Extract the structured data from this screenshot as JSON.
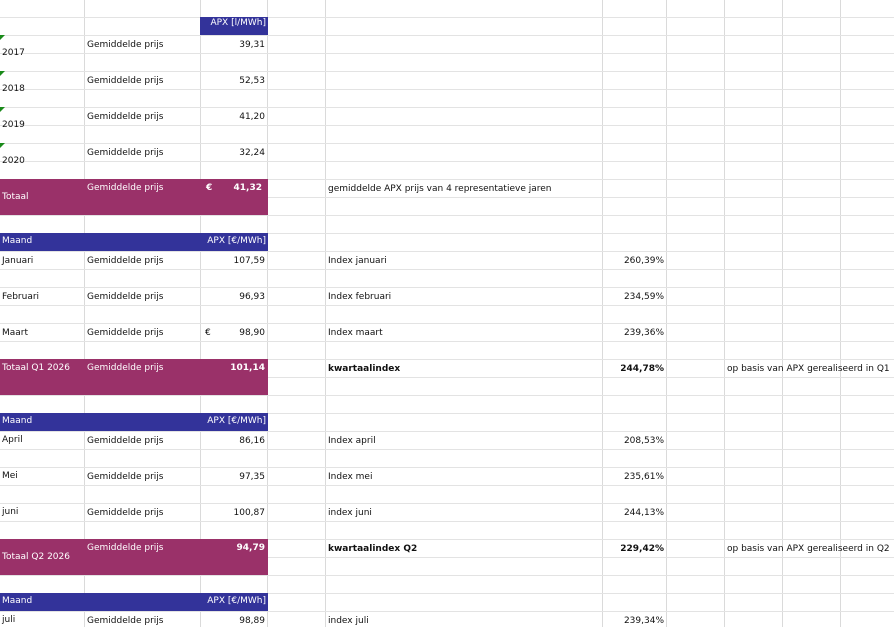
{
  "colors": {
    "header_blue": "#33339a",
    "total_maroon": "#9a3169",
    "grid_line": "#dadada",
    "error_triangle": "#1a8a1a"
  },
  "section1": {
    "header_apx": "APX [l/MWh]",
    "rows": [
      {
        "year": "2017",
        "label": "Gemiddelde prijs",
        "value": "39,31"
      },
      {
        "year": "2018",
        "label": "Gemiddelde prijs",
        "value": "52,53"
      },
      {
        "year": "2019",
        "label": "Gemiddelde prijs",
        "value": "41,20"
      },
      {
        "year": "2020",
        "label": "Gemiddelde prijs",
        "value": "32,24"
      }
    ],
    "total": {
      "label": "Totaal",
      "desc": "Gemiddelde prijs",
      "currency": "€",
      "value": "41,32",
      "note": "gemiddelde APX prijs van 4 representatieve jaren"
    }
  },
  "q1": {
    "header_month": "Maand",
    "header_apx": "APX [€/MWh]",
    "rows": [
      {
        "month": "Januari",
        "label": "Gemiddelde prijs",
        "currency": "",
        "value": "107,59",
        "index_label": "Index januari",
        "index": "260,39%"
      },
      {
        "month": "Februari",
        "label": "Gemiddelde prijs",
        "currency": "",
        "value": "96,93",
        "index_label": "Index februari",
        "index": "234,59%"
      },
      {
        "month": "Maart",
        "label": "Gemiddelde prijs",
        "currency": "€",
        "value": "98,90",
        "index_label": "Index maart",
        "index": "239,36%"
      }
    ],
    "total": {
      "label": "Totaal Q1 2026",
      "desc": "Gemiddelde prijs",
      "value": "101,14",
      "index_label": "kwartaalindex",
      "index": "244,78%",
      "note": "op basis van APX gerealiseerd in Q1"
    }
  },
  "q2": {
    "header_month": "Maand",
    "header_apx": "APX [€/MWh]",
    "rows": [
      {
        "month": "April",
        "label": "Gemiddelde prijs",
        "value": "86,16",
        "index_label": "Index april",
        "index": "208,53%"
      },
      {
        "month": "Mei",
        "label": "Gemiddelde prijs",
        "value": "97,35",
        "index_label": "Index mei",
        "index": "235,61%"
      },
      {
        "month": "juni",
        "label": "Gemiddelde prijs",
        "value": "100,87",
        "index_label": "index juni",
        "index": "244,13%"
      }
    ],
    "total": {
      "label": "Totaal Q2 2026",
      "desc": "Gemiddelde prijs",
      "value": "94,79",
      "index_label": "kwartaalindex Q2",
      "index": "229,42%",
      "note": "op basis van APX gerealiseerd in Q2"
    }
  },
  "q3": {
    "header_month": "Maand",
    "header_apx": "APX [€/MWh]",
    "rows": [
      {
        "month": "juli",
        "label": "Gemiddelde prijs",
        "value": "98,89",
        "index_label": "index juli",
        "index": "239,34%"
      }
    ]
  }
}
